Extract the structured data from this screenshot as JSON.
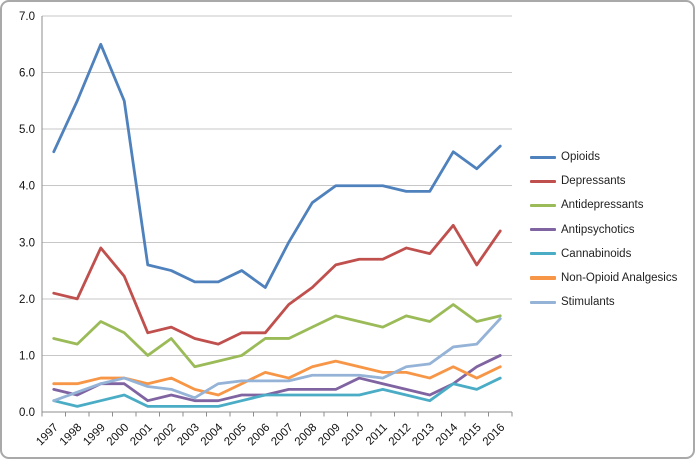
{
  "chart_data": {
    "type": "line",
    "title": "",
    "xlabel": "",
    "ylabel": "",
    "grid": true,
    "legend_position": "right",
    "x_labels": [
      "1997",
      "1998",
      "1999",
      "2000",
      "2001",
      "2002",
      "2003",
      "2004",
      "2005",
      "2006",
      "2007",
      "2008",
      "2009",
      "2010",
      "2011",
      "2012",
      "2013",
      "2014",
      "2015",
      "2016"
    ],
    "y_axis": {
      "min": 0,
      "max": 7,
      "step": 1,
      "decimals": 1
    },
    "series": [
      {
        "name": "Opioids",
        "color": "#4F81BD",
        "values": [
          4.6,
          5.5,
          6.5,
          5.5,
          2.6,
          2.5,
          2.3,
          2.3,
          2.5,
          2.2,
          3.0,
          3.7,
          4.0,
          4.0,
          4.0,
          3.9,
          3.9,
          4.6,
          4.3,
          4.7
        ]
      },
      {
        "name": "Depressants",
        "color": "#C0504D",
        "values": [
          2.1,
          2.0,
          2.9,
          2.4,
          1.4,
          1.5,
          1.3,
          1.2,
          1.4,
          1.4,
          1.9,
          2.2,
          2.6,
          2.7,
          2.7,
          2.9,
          2.8,
          3.3,
          2.6,
          3.2
        ]
      },
      {
        "name": "Antidepressants",
        "color": "#9BBB59",
        "values": [
          1.3,
          1.2,
          1.6,
          1.4,
          1.0,
          1.3,
          0.8,
          0.9,
          1.0,
          1.3,
          1.3,
          1.5,
          1.7,
          1.6,
          1.5,
          1.7,
          1.6,
          1.9,
          1.6,
          1.7
        ]
      },
      {
        "name": "Antipsychotics",
        "color": "#8064A2",
        "values": [
          0.4,
          0.3,
          0.5,
          0.5,
          0.2,
          0.3,
          0.2,
          0.2,
          0.3,
          0.3,
          0.4,
          0.4,
          0.4,
          0.6,
          0.5,
          0.4,
          0.3,
          0.5,
          0.8,
          1.0
        ]
      },
      {
        "name": "Cannabinoids",
        "color": "#4BACC6",
        "values": [
          0.2,
          0.1,
          0.2,
          0.3,
          0.1,
          0.1,
          0.1,
          0.1,
          0.2,
          0.3,
          0.3,
          0.3,
          0.3,
          0.3,
          0.4,
          0.3,
          0.2,
          0.5,
          0.4,
          0.6
        ]
      },
      {
        "name": "Non-Opioid Analgesics",
        "color": "#F79646",
        "values": [
          0.5,
          0.5,
          0.6,
          0.6,
          0.5,
          0.6,
          0.4,
          0.3,
          0.5,
          0.7,
          0.6,
          0.8,
          0.9,
          0.8,
          0.7,
          0.7,
          0.6,
          0.8,
          0.6,
          0.8
        ]
      },
      {
        "name": "Stimulants",
        "color": "#95B3D7",
        "values": [
          0.2,
          0.35,
          0.5,
          0.6,
          0.45,
          0.4,
          0.25,
          0.5,
          0.55,
          0.55,
          0.55,
          0.65,
          0.65,
          0.65,
          0.6,
          0.8,
          0.85,
          1.15,
          1.2,
          1.65
        ]
      }
    ],
    "colors": {
      "gridline": "#C7C7C7",
      "axis": "#8E8E8E",
      "tick_label": "#111111",
      "background": "#FFFFFF"
    }
  }
}
